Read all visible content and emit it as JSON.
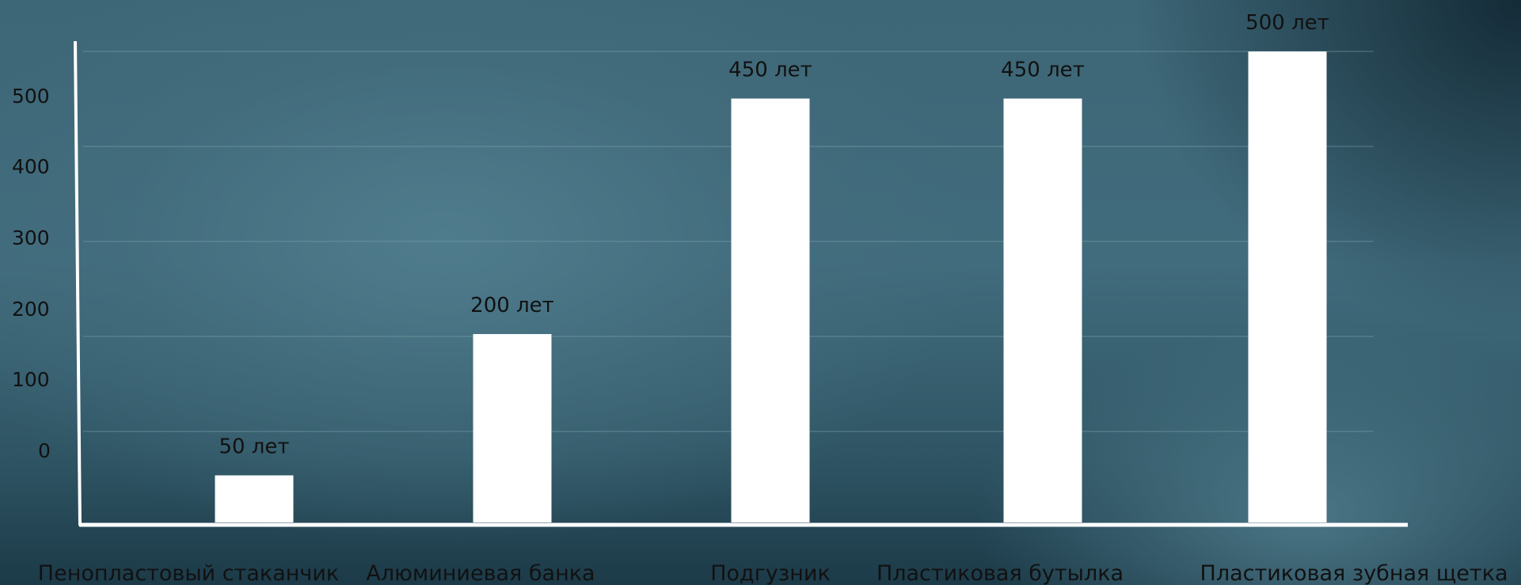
{
  "chart_data": {
    "type": "bar",
    "title": "",
    "xlabel": "",
    "ylabel": "",
    "categories": [
      "Пенопластовый стаканчик",
      "Алюминиевая банка",
      "Подгузник",
      "Пластиковая бутылка",
      "Пластиковая зубная щетка"
    ],
    "values": [
      50,
      200,
      450,
      450,
      500
    ],
    "data_labels": [
      "50 лет",
      "200 лет",
      "450 лет",
      "450 лет",
      "500 лет"
    ],
    "y_ticks": [
      "0",
      "100",
      "200",
      "300",
      "400",
      "500"
    ],
    "grid": true,
    "legend": "none",
    "colors": {
      "bar": "#ffffff",
      "axis": "#ffffff",
      "grid": "#7ea2ae"
    }
  }
}
